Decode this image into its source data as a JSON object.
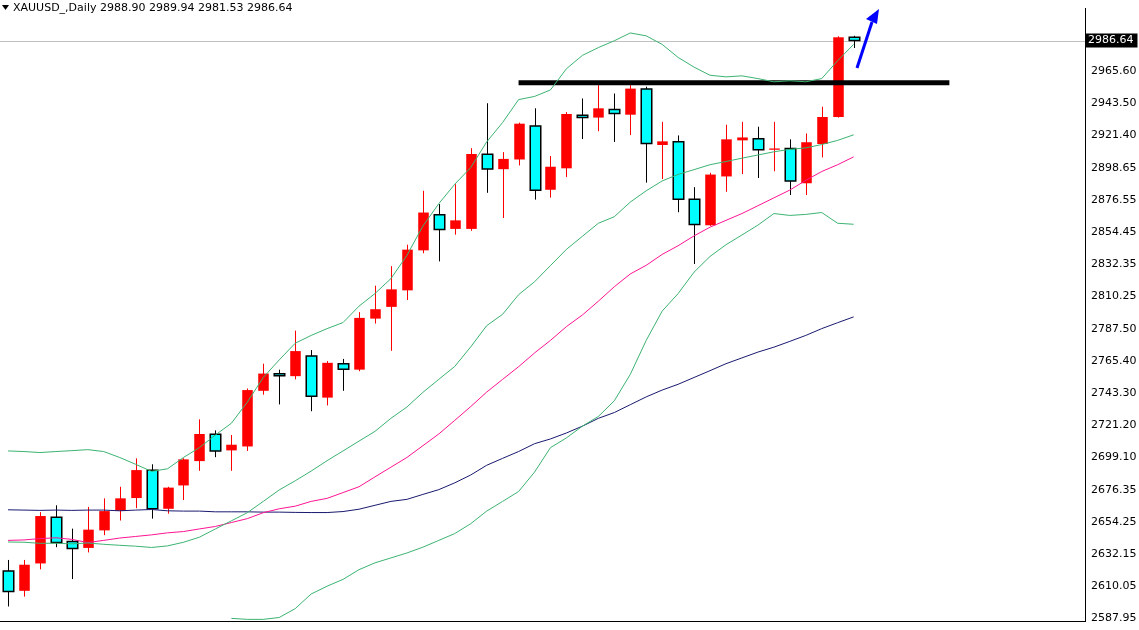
{
  "chart_data": {
    "type": "candlestick",
    "title": "XAUUSD_,Daily 2988.90 2989.94 2981.53 2986.64",
    "categories": [
      null,
      null,
      null,
      null,
      null,
      null,
      null,
      null,
      null,
      null,
      null,
      null,
      null,
      null,
      null,
      null,
      null,
      null,
      null,
      null,
      null,
      null,
      null,
      null,
      null,
      null,
      null,
      null,
      null,
      null,
      null,
      null,
      null,
      null,
      null,
      null,
      null,
      null,
      null,
      null,
      null,
      null,
      null,
      null,
      null,
      null,
      null,
      null,
      null,
      null,
      null,
      null,
      null,
      null,
      null,
      null,
      null,
      null,
      null,
      null,
      null,
      null,
      null,
      null,
      null,
      null,
      null,
      null
    ],
    "ohlc": [
      [
        2620.7,
        2628.3,
        2596.2,
        2606.6
      ],
      [
        2607.0,
        2628.3,
        2603.0,
        2625.0
      ],
      [
        2625.9,
        2661.3,
        2621.8,
        2658.6
      ],
      [
        2657.8,
        2666.0,
        2637.1,
        2640.3
      ],
      [
        2641.1,
        2649.9,
        2615.1,
        2636.2
      ],
      [
        2636.6,
        2664.9,
        2633.5,
        2649.2
      ],
      [
        2648.7,
        2670.8,
        2645.4,
        2662.0
      ],
      [
        2662.2,
        2678.8,
        2655.5,
        2670.8
      ],
      [
        2671.0,
        2698.4,
        2664.0,
        2690.3
      ],
      [
        2690.1,
        2694.3,
        2656.8,
        2663.6
      ],
      [
        2663.6,
        2678.8,
        2660.2,
        2678.2
      ],
      [
        2679.7,
        2698.5,
        2669.6,
        2697.7
      ],
      [
        2696.5,
        2725.3,
        2689.8,
        2715.2
      ],
      [
        2715.0,
        2717.7,
        2699.2,
        2703.5
      ],
      [
        2703.9,
        2714.5,
        2689.8,
        2707.8
      ],
      [
        2706.6,
        2746.6,
        2703.5,
        2745.5
      ],
      [
        2745.0,
        2763.7,
        2742.3,
        2756.9
      ],
      [
        2756.7,
        2759.6,
        2735.6,
        2755.4
      ],
      [
        2755.1,
        2786.5,
        2752.9,
        2772.4
      ],
      [
        2769.0,
        2773.1,
        2730.9,
        2741.2
      ],
      [
        2740.3,
        2765.5,
        2734.9,
        2764.3
      ],
      [
        2763.7,
        2767.0,
        2745.0,
        2759.8
      ],
      [
        2759.6,
        2799.3,
        2758.5,
        2795.3
      ],
      [
        2794.8,
        2817.5,
        2791.4,
        2801.3
      ],
      [
        2802.9,
        2831.0,
        2772.6,
        2815.0
      ],
      [
        2814.3,
        2845.8,
        2807.6,
        2842.4
      ],
      [
        2841.9,
        2883.0,
        2839.9,
        2868.0
      ],
      [
        2866.4,
        2873.8,
        2834.3,
        2856.3
      ],
      [
        2856.7,
        2887.5,
        2852.7,
        2862.6
      ],
      [
        2856.7,
        2912.4,
        2855.4,
        2908.4
      ],
      [
        2908.2,
        2943.4,
        2881.6,
        2898.1
      ],
      [
        2897.9,
        2909.7,
        2864.2,
        2905.0
      ],
      [
        2904.6,
        2930.0,
        2900.5,
        2929.3
      ],
      [
        2927.7,
        2939.9,
        2876.9,
        2883.3
      ],
      [
        2883.7,
        2907.0,
        2878.3,
        2899.6
      ],
      [
        2898.5,
        2937.3,
        2892.4,
        2936.0
      ],
      [
        2935.1,
        2946.7,
        2918.7,
        2933.5
      ],
      [
        2933.5,
        2955.9,
        2924.1,
        2939.9
      ],
      [
        2939.0,
        2950.1,
        2916.7,
        2936.4
      ],
      [
        2935.5,
        2955.9,
        2921.4,
        2953.5
      ],
      [
        2953.3,
        2954.8,
        2888.6,
        2915.6
      ],
      [
        2914.6,
        2930.6,
        2891.1,
        2917.1
      ],
      [
        2916.9,
        2921.2,
        2868.2,
        2877.2
      ],
      [
        2877.2,
        2885.5,
        2832.5,
        2859.7
      ],
      [
        2859.2,
        2895.4,
        2858.8,
        2894.2
      ],
      [
        2892.9,
        2928.6,
        2882.3,
        2918.5
      ],
      [
        2917.8,
        2930.6,
        2894.5,
        2919.8
      ],
      [
        2918.9,
        2927.2,
        2891.8,
        2911.3
      ],
      [
        2911.3,
        2930.6,
        2896.5,
        2912.2
      ],
      [
        2912.2,
        2918.5,
        2880.1,
        2889.7
      ],
      [
        2888.2,
        2922.5,
        2880.1,
        2916.5
      ],
      [
        2915.3,
        2941.0,
        2906.0,
        2933.9
      ],
      [
        2933.9,
        2989.6,
        2933.5,
        2988.9
      ],
      [
        2988.9,
        2989.94,
        2981.53,
        2986.64
      ],
      null,
      null,
      null,
      null,
      null,
      null,
      null,
      null,
      null,
      null,
      null,
      null,
      null,
      null
    ],
    "colors": [
      "#00ffff",
      "#ff0000",
      "#ff0000",
      "#00ffff",
      "#00ffff",
      "#ff0000",
      "#ff0000",
      "#ff0000",
      "#ff0000",
      "#00ffff",
      "#ff0000",
      "#ff0000",
      "#ff0000",
      "#00ffff",
      "#ff0000",
      "#ff0000",
      "#ff0000",
      "#00ffff",
      "#ff0000",
      "#00ffff",
      "#ff0000",
      "#00ffff",
      "#ff0000",
      "#ff0000",
      "#ff0000",
      "#ff0000",
      "#ff0000",
      "#00ffff",
      "#ff0000",
      "#ff0000",
      "#00ffff",
      "#ff0000",
      "#ff0000",
      "#00ffff",
      "#ff0000",
      "#ff0000",
      "#00ffff",
      "#ff0000",
      "#00ffff",
      "#ff0000",
      "#00ffff",
      "#ff0000",
      "#00ffff",
      "#00ffff",
      "#ff0000",
      "#ff0000",
      "#ff0000",
      "#00ffff",
      "#ff0000",
      "#00ffff",
      "#ff0000",
      "#ff0000",
      "#ff0000",
      "#00ffff",
      null,
      null,
      null,
      null,
      null,
      null,
      null,
      null,
      null,
      null,
      null,
      null,
      null,
      null
    ],
    "series": [
      {
        "type": "line",
        "color": "#3cb371",
        "values": [
          2703.5,
          2703.1,
          2702.4,
          2703.1,
          2703.7,
          2704.4,
          2703.1,
          2699.0,
          2694.3,
          2689.4,
          2691.2,
          2699.0,
          2705.8,
          2714.5,
          2722.6,
          2737.2,
          2754.2,
          2766.3,
          2777.8,
          2783.2,
          2787.9,
          2792.1,
          2803.4,
          2812.1,
          2822.4,
          2838.4,
          2858.6,
          2874.1,
          2887.5,
          2899.0,
          2916.7,
          2930.1,
          2945.9,
          2948.1,
          2952.6,
          2967.2,
          2976.4,
          2981.8,
          2986.5,
          2991.9,
          2989.9,
          2984.0,
          2975.0,
          2968.3,
          2962.7,
          2961.6,
          2962.3,
          2960.4,
          2958.2,
          2958.9,
          2958.2,
          2960.4,
          2972.8,
          2984.0,
          null,
          null,
          null,
          null,
          null,
          null,
          null,
          null,
          null,
          null,
          null,
          null,
          null,
          null
        ]
      },
      {
        "type": "line",
        "color": "#3cb371",
        "values": [
          2640.7,
          2640.5,
          2639.8,
          2639.8,
          2639.4,
          2640.0,
          2639.1,
          2638.4,
          2637.8,
          2636.9,
          2638.0,
          2640.5,
          2644.0,
          2649.7,
          2655.3,
          2660.9,
          2668.7,
          2676.6,
          2682.9,
          2689.6,
          2696.8,
          2703.5,
          2710.3,
          2717.0,
          2726.0,
          2733.8,
          2743.9,
          2752.9,
          2761.8,
          2775.3,
          2789.9,
          2797.8,
          2811.3,
          2820.2,
          2831.4,
          2842.6,
          2851.6,
          2860.6,
          2865.1,
          2875.2,
          2883.0,
          2889.8,
          2894.3,
          2897.6,
          2901.0,
          2903.2,
          2905.5,
          2907.7,
          2909.9,
          2911.6,
          2912.6,
          2914.9,
          2917.8,
          2921.6,
          null,
          null,
          null,
          null,
          null,
          null,
          null,
          null,
          null,
          null,
          null,
          null,
          null,
          null
        ]
      },
      {
        "type": "line",
        "color": "#3cb371",
        "values": [
          null,
          null,
          null,
          null,
          null,
          null,
          null,
          null,
          null,
          null,
          null,
          null,
          null,
          null,
          2588.0,
          2587.3,
          2587.3,
          2588.6,
          2594.7,
          2604.8,
          2610.2,
          2614.9,
          2621.6,
          2626.3,
          2629.7,
          2633.1,
          2637.1,
          2641.8,
          2646.5,
          2653.3,
          2662.0,
          2668.7,
          2675.5,
          2688.9,
          2705.8,
          2712.5,
          2720.6,
          2727.3,
          2738.1,
          2756.3,
          2779.8,
          2800.0,
          2812.1,
          2826.9,
          2837.7,
          2845.8,
          2852.5,
          2859.3,
          2867.3,
          2866.0,
          2866.7,
          2868.0,
          2860.6,
          2859.9,
          null,
          null,
          null,
          null,
          null,
          null,
          null,
          null,
          null,
          null,
          null,
          null,
          null,
          null
        ]
      },
      {
        "type": "line",
        "color": "#ff1493",
        "values": [
          2641.8,
          2642.1,
          2643.0,
          2643.6,
          2642.5,
          2640.3,
          2641.8,
          2643.4,
          2644.5,
          2645.6,
          2647.0,
          2647.9,
          2649.7,
          2651.4,
          2654.1,
          2656.8,
          2660.9,
          2663.6,
          2665.4,
          2668.7,
          2670.8,
          2674.8,
          2678.8,
          2685.6,
          2692.3,
          2699.0,
          2707.1,
          2715.2,
          2724.6,
          2734.1,
          2744.1,
          2752.9,
          2761.6,
          2771.1,
          2779.8,
          2789.3,
          2797.3,
          2806.8,
          2816.8,
          2825.6,
          2831.6,
          2839.1,
          2845.1,
          2851.9,
          2857.9,
          2862.6,
          2867.3,
          2872.7,
          2878.1,
          2883.5,
          2890.2,
          2896.3,
          2901.0,
          2906.4,
          null,
          null,
          null,
          null,
          null,
          null,
          null,
          null,
          null,
          null,
          null,
          null,
          null,
          null
        ]
      },
      {
        "type": "line",
        "color": "#191970",
        "values": [
          2662.9,
          2662.7,
          2662.5,
          2662.7,
          2662.5,
          2662.7,
          2662.7,
          2662.2,
          2662.7,
          2663.1,
          2662.2,
          2662.0,
          2662.0,
          2661.5,
          2661.5,
          2661.5,
          2661.3,
          2661.3,
          2661.1,
          2661.0,
          2661.0,
          2661.7,
          2663.3,
          2666.0,
          2668.7,
          2670.1,
          2673.5,
          2676.8,
          2681.5,
          2686.9,
          2693.6,
          2698.4,
          2703.1,
          2708.5,
          2711.8,
          2715.9,
          2720.6,
          2726.0,
          2730.0,
          2735.4,
          2740.8,
          2745.5,
          2749.5,
          2754.2,
          2758.9,
          2763.7,
          2767.7,
          2771.7,
          2775.1,
          2779.1,
          2783.2,
          2787.9,
          2792.0,
          2796.0,
          null,
          null,
          null,
          null,
          null,
          null,
          null,
          null,
          null,
          null,
          null,
          null,
          null,
          null
        ]
      },
      {
        "type": "line",
        "color": "#000000",
        "values": [
          null,
          null,
          null,
          null,
          null,
          null,
          null,
          null,
          null,
          null,
          null,
          null,
          null,
          null,
          null,
          null,
          null,
          null,
          null,
          null,
          null,
          null,
          null,
          null,
          null,
          null,
          null,
          null,
          null,
          null,
          null,
          null,
          2957.5,
          null,
          null,
          null,
          null,
          null,
          null,
          null,
          null,
          null,
          null,
          null,
          null,
          null,
          null,
          null,
          null,
          null,
          null,
          null,
          null,
          null,
          null,
          null,
          null,
          null,
          null,
          2957.5,
          null,
          null,
          null,
          null,
          null,
          null,
          null,
          null
        ]
      }
    ],
    "marker": "none",
    "line_style": "solid",
    "ylim": [
      2585.9,
      3008.7
    ],
    "yticks": [
      {
        "value": 2587.95,
        "label": "2587.95"
      },
      {
        "value": 2610.05,
        "label": "2610.05"
      },
      {
        "value": 2632.15,
        "label": "2632.15"
      },
      {
        "value": 2654.25,
        "label": "2654.25"
      },
      {
        "value": 2676.35,
        "label": "2676.35"
      },
      {
        "value": 2699.1,
        "label": "2699.10"
      },
      {
        "value": 2721.2,
        "label": "2721.20"
      },
      {
        "value": 2743.3,
        "label": "2743.30"
      },
      {
        "value": 2765.4,
        "label": "2765.40"
      },
      {
        "value": 2787.5,
        "label": "2787.50"
      },
      {
        "value": 2810.25,
        "label": "2810.25"
      },
      {
        "value": 2832.35,
        "label": "2832.35"
      },
      {
        "value": 2854.45,
        "label": "2854.45"
      },
      {
        "value": 2876.55,
        "label": "2876.55"
      },
      {
        "value": 2898.65,
        "label": "2898.65"
      },
      {
        "value": 2921.4,
        "label": "2921.40"
      },
      {
        "value": 2943.5,
        "label": "2943.50"
      },
      {
        "value": 2965.6,
        "label": "2965.60"
      }
    ],
    "ref_lines": [
      {
        "axis": "y",
        "value": 2986.64,
        "label": "2986.64",
        "color": "#c0c0c0"
      }
    ],
    "tick_labels": "y",
    "legend": false,
    "grid": false
  }
}
